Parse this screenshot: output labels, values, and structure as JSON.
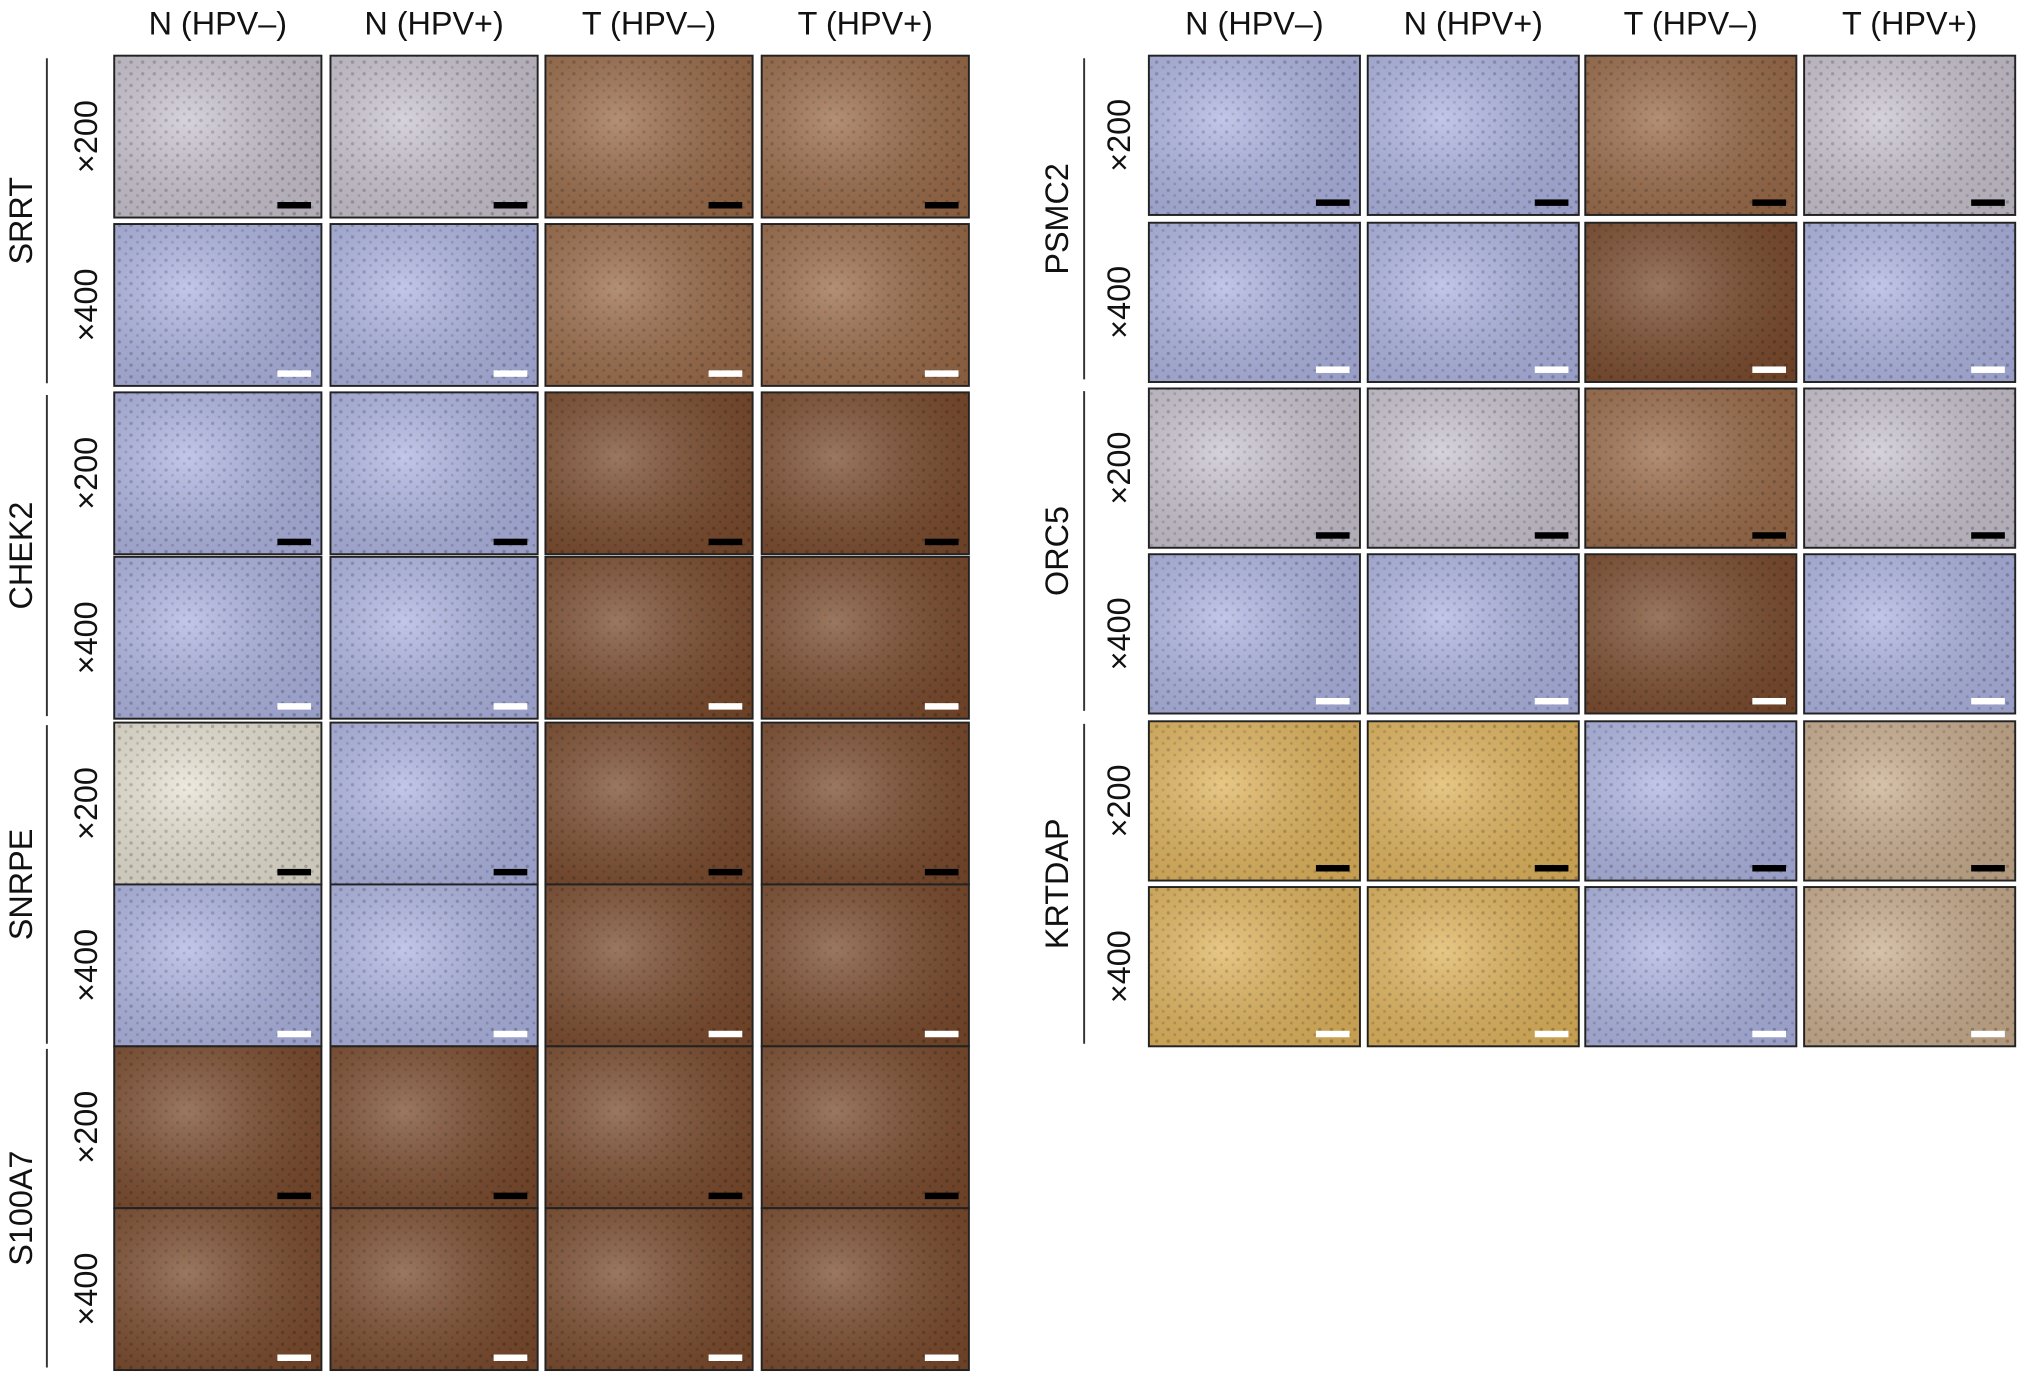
{
  "left": {
    "columns": [
      "N (HPV–)",
      "N (HPV+)",
      "T (HPV–)",
      "T (HPV+)"
    ],
    "groups": [
      {
        "gene": "SRRT",
        "magnifications": [
          "×200",
          "×400"
        ]
      },
      {
        "gene": "CHEK2",
        "magnifications": [
          "×200",
          "×400"
        ]
      },
      {
        "gene": "SNRPE",
        "magnifications": [
          "×200",
          "×400"
        ]
      },
      {
        "gene": "S100A7",
        "magnifications": [
          "×200",
          "×400"
        ]
      }
    ]
  },
  "right": {
    "columns": [
      "N (HPV–)",
      "N (HPV+)",
      "T (HPV–)",
      "T (HPV+)"
    ],
    "groups": [
      {
        "gene": "PSMC2",
        "magnifications": [
          "×200",
          "×400"
        ]
      },
      {
        "gene": "ORC5",
        "magnifications": [
          "×200",
          "×400"
        ]
      },
      {
        "gene": "KRTDAP",
        "magnifications": [
          "×200",
          "×400"
        ]
      }
    ]
  }
}
